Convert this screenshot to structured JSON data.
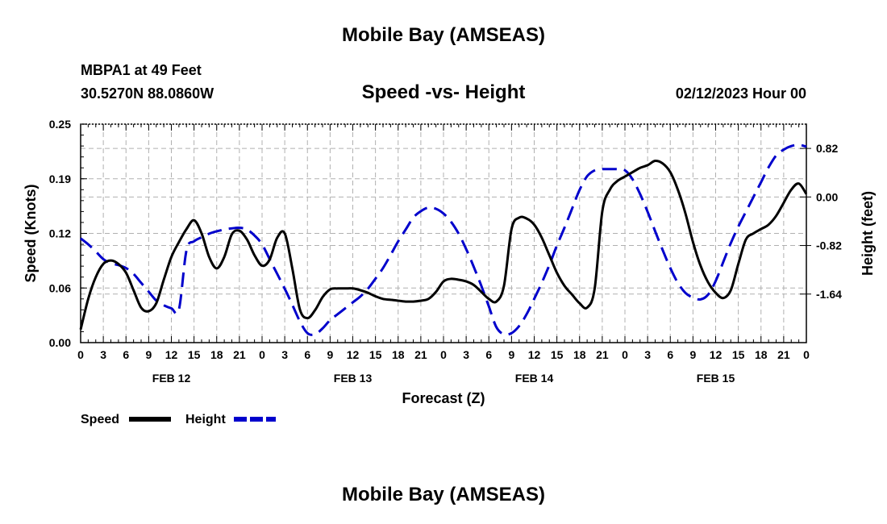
{
  "header": {
    "title": "Mobile Bay (AMSEAS)",
    "station": "MBPA1 at 49 Feet",
    "coords": "30.5270N  88.0860W",
    "subtitle": "Speed -vs- Height",
    "datetime": "02/12/2023 Hour 00"
  },
  "footer": {
    "title": "Mobile Bay (AMSEAS)"
  },
  "chart_data": {
    "type": "line",
    "title": "Speed -vs- Height",
    "xlabel": "Forecast (Z)",
    "ylabel": "Speed (Knots)",
    "ylabel_right": "Height (feet)",
    "xlim": [
      0,
      96
    ],
    "ylim": [
      0,
      0.25
    ],
    "ylim_right": [
      -2.46,
      1.23
    ],
    "grid": true,
    "x_tick_labels": [
      "0",
      "3",
      "6",
      "9",
      "12",
      "15",
      "18",
      "21",
      "0",
      "3",
      "6",
      "9",
      "12",
      "15",
      "18",
      "21",
      "0",
      "3",
      "6",
      "9",
      "12",
      "15",
      "18",
      "21",
      "0",
      "3",
      "6",
      "9",
      "12",
      "15",
      "18",
      "21",
      "0"
    ],
    "y_tick_labels": [
      "0.00",
      "0.06",
      "0.12",
      "0.19",
      "0.25"
    ],
    "y_tick_values": [
      0,
      0.0625,
      0.125,
      0.1875,
      0.25
    ],
    "y2_tick_labels": [
      "-1.64",
      "-0.82",
      "0.00",
      "0.82"
    ],
    "y2_tick_values": [
      -1.64,
      -0.82,
      0.0,
      0.82
    ],
    "date_labels": [
      {
        "label": "FEB 12",
        "x": 12
      },
      {
        "label": "FEB 13",
        "x": 36
      },
      {
        "label": "FEB 14",
        "x": 60
      },
      {
        "label": "FEB 15",
        "x": 84
      }
    ],
    "legend": {
      "placement": "bottom-left"
    },
    "series": [
      {
        "name": "Speed",
        "color": "#000000",
        "dash": "solid",
        "axis": "left",
        "x": [
          0,
          1,
          2,
          3,
          4,
          5,
          6,
          7,
          8,
          9,
          10,
          11,
          12,
          13,
          14,
          15,
          16,
          17,
          18,
          19,
          20,
          21,
          22,
          23,
          24,
          25,
          26,
          27,
          28,
          29,
          30,
          31,
          32,
          33,
          34,
          35,
          36,
          37,
          38,
          39,
          40,
          41,
          42,
          43,
          44,
          45,
          46,
          47,
          48,
          49,
          50,
          51,
          52,
          53,
          54,
          55,
          56,
          57,
          58,
          59,
          60,
          61,
          62,
          63,
          64,
          65,
          66,
          67,
          68,
          69,
          70,
          71,
          72,
          73,
          74,
          75,
          76,
          77,
          78,
          79,
          80,
          81,
          82,
          83,
          84,
          85,
          86,
          87,
          88,
          89,
          90,
          91,
          92,
          93,
          94,
          95,
          96
        ],
        "values": [
          0.015,
          0.05,
          0.075,
          0.09,
          0.094,
          0.09,
          0.08,
          0.06,
          0.04,
          0.036,
          0.045,
          0.072,
          0.098,
          0.115,
          0.13,
          0.14,
          0.125,
          0.098,
          0.085,
          0.098,
          0.124,
          0.128,
          0.118,
          0.1,
          0.088,
          0.095,
          0.12,
          0.125,
          0.085,
          0.038,
          0.028,
          0.037,
          0.052,
          0.061,
          0.062,
          0.062,
          0.062,
          0.06,
          0.057,
          0.053,
          0.05,
          0.049,
          0.048,
          0.047,
          0.047,
          0.048,
          0.05,
          0.058,
          0.07,
          0.073,
          0.072,
          0.07,
          0.066,
          0.058,
          0.05,
          0.047,
          0.065,
          0.13,
          0.143,
          0.142,
          0.135,
          0.12,
          0.1,
          0.08,
          0.065,
          0.055,
          0.045,
          0.04,
          0.062,
          0.15,
          0.175,
          0.185,
          0.19,
          0.195,
          0.2,
          0.203,
          0.208,
          0.205,
          0.195,
          0.175,
          0.148,
          0.115,
          0.088,
          0.069,
          0.057,
          0.051,
          0.06,
          0.09,
          0.118,
          0.125,
          0.13,
          0.135,
          0.145,
          0.16,
          0.175,
          0.182,
          0.17
        ]
      },
      {
        "name": "Height",
        "color": "#0000cc",
        "dash": "dashed",
        "axis": "right",
        "x": [
          0,
          1,
          2,
          3,
          4,
          5,
          6,
          7,
          8,
          9,
          10,
          11,
          12,
          13,
          14,
          15,
          16,
          17,
          18,
          19,
          20,
          21,
          22,
          23,
          24,
          25,
          26,
          27,
          28,
          29,
          30,
          31,
          32,
          33,
          34,
          35,
          36,
          37,
          38,
          39,
          40,
          41,
          42,
          43,
          44,
          45,
          46,
          47,
          48,
          49,
          50,
          51,
          52,
          53,
          54,
          55,
          56,
          57,
          58,
          59,
          60,
          61,
          62,
          63,
          64,
          65,
          66,
          67,
          68,
          69,
          70,
          71,
          72,
          73,
          74,
          75,
          76,
          77,
          78,
          79,
          80,
          81,
          82,
          83,
          84,
          85,
          86,
          87,
          88,
          89,
          90,
          91,
          92,
          93,
          94,
          95,
          96
        ],
        "values": [
          -0.7,
          -0.8,
          -0.92,
          -1.05,
          -1.12,
          -1.15,
          -1.2,
          -1.3,
          -1.45,
          -1.6,
          -1.75,
          -1.83,
          -1.88,
          -1.9,
          -0.9,
          -0.75,
          -0.68,
          -0.62,
          -0.58,
          -0.55,
          -0.53,
          -0.52,
          -0.55,
          -0.65,
          -0.8,
          -1.05,
          -1.3,
          -1.55,
          -1.82,
          -2.1,
          -2.3,
          -2.32,
          -2.22,
          -2.08,
          -1.98,
          -1.88,
          -1.78,
          -1.68,
          -1.55,
          -1.38,
          -1.2,
          -0.98,
          -0.75,
          -0.55,
          -0.35,
          -0.24,
          -0.18,
          -0.2,
          -0.28,
          -0.42,
          -0.62,
          -0.88,
          -1.18,
          -1.5,
          -1.85,
          -2.2,
          -2.32,
          -2.3,
          -2.18,
          -1.98,
          -1.72,
          -1.45,
          -1.15,
          -0.82,
          -0.52,
          -0.2,
          0.12,
          0.35,
          0.45,
          0.47,
          0.47,
          0.47,
          0.45,
          0.3,
          0.05,
          -0.25,
          -0.58,
          -0.9,
          -1.2,
          -1.45,
          -1.62,
          -1.7,
          -1.73,
          -1.65,
          -1.42,
          -1.1,
          -0.78,
          -0.5,
          -0.25,
          0.0,
          0.25,
          0.5,
          0.7,
          0.8,
          0.86,
          0.88,
          0.85
        ]
      }
    ]
  }
}
